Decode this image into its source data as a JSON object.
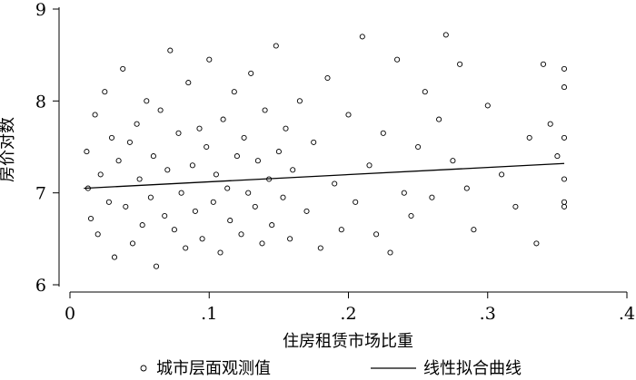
{
  "chart_data": {
    "type": "scatter",
    "xlabel": "住房租赁市场比重",
    "ylabel": "房价对数",
    "xlim": [
      0,
      0.4
    ],
    "ylim": [
      6,
      9
    ],
    "x_ticks": [
      0,
      0.1,
      0.2,
      0.3,
      0.4
    ],
    "x_tick_labels": [
      "0",
      ".1",
      ".2",
      ".3",
      ".4"
    ],
    "y_ticks": [
      6,
      7,
      8,
      9
    ],
    "y_tick_labels": [
      "6",
      "7",
      "8",
      "9"
    ],
    "grid": false,
    "legend_position": "bottom",
    "series": [
      {
        "name": "城市层面观测值",
        "kind": "scatter",
        "marker": "hollow-circle",
        "points": [
          [
            0.012,
            7.45
          ],
          [
            0.013,
            7.05
          ],
          [
            0.015,
            6.72
          ],
          [
            0.018,
            7.85
          ],
          [
            0.02,
            6.55
          ],
          [
            0.022,
            7.2
          ],
          [
            0.025,
            8.1
          ],
          [
            0.028,
            6.9
          ],
          [
            0.03,
            7.6
          ],
          [
            0.032,
            6.3
          ],
          [
            0.035,
            7.35
          ],
          [
            0.038,
            8.35
          ],
          [
            0.04,
            6.85
          ],
          [
            0.043,
            7.55
          ],
          [
            0.045,
            6.45
          ],
          [
            0.048,
            7.75
          ],
          [
            0.05,
            7.15
          ],
          [
            0.052,
            6.65
          ],
          [
            0.055,
            8.0
          ],
          [
            0.058,
            6.95
          ],
          [
            0.06,
            7.4
          ],
          [
            0.062,
            6.2
          ],
          [
            0.065,
            7.9
          ],
          [
            0.068,
            6.75
          ],
          [
            0.07,
            7.25
          ],
          [
            0.072,
            8.55
          ],
          [
            0.075,
            6.6
          ],
          [
            0.078,
            7.65
          ],
          [
            0.08,
            7.0
          ],
          [
            0.083,
            6.4
          ],
          [
            0.085,
            8.2
          ],
          [
            0.088,
            7.3
          ],
          [
            0.09,
            6.8
          ],
          [
            0.093,
            7.7
          ],
          [
            0.095,
            6.5
          ],
          [
            0.098,
            7.5
          ],
          [
            0.1,
            8.45
          ],
          [
            0.103,
            6.9
          ],
          [
            0.105,
            7.2
          ],
          [
            0.108,
            6.35
          ],
          [
            0.11,
            7.8
          ],
          [
            0.113,
            7.05
          ],
          [
            0.115,
            6.7
          ],
          [
            0.118,
            8.1
          ],
          [
            0.12,
            7.4
          ],
          [
            0.123,
            6.55
          ],
          [
            0.125,
            7.6
          ],
          [
            0.128,
            7.0
          ],
          [
            0.13,
            8.3
          ],
          [
            0.133,
            6.85
          ],
          [
            0.135,
            7.35
          ],
          [
            0.138,
            6.45
          ],
          [
            0.14,
            7.9
          ],
          [
            0.143,
            7.15
          ],
          [
            0.145,
            6.65
          ],
          [
            0.148,
            8.6
          ],
          [
            0.15,
            7.45
          ],
          [
            0.153,
            6.95
          ],
          [
            0.155,
            7.7
          ],
          [
            0.158,
            6.5
          ],
          [
            0.16,
            7.25
          ],
          [
            0.165,
            8.0
          ],
          [
            0.17,
            6.8
          ],
          [
            0.175,
            7.55
          ],
          [
            0.18,
            6.4
          ],
          [
            0.185,
            8.25
          ],
          [
            0.19,
            7.1
          ],
          [
            0.195,
            6.6
          ],
          [
            0.2,
            7.85
          ],
          [
            0.205,
            6.9
          ],
          [
            0.21,
            8.7
          ],
          [
            0.215,
            7.3
          ],
          [
            0.22,
            6.55
          ],
          [
            0.225,
            7.65
          ],
          [
            0.23,
            6.35
          ],
          [
            0.235,
            8.45
          ],
          [
            0.24,
            7.0
          ],
          [
            0.245,
            6.75
          ],
          [
            0.25,
            7.5
          ],
          [
            0.255,
            8.1
          ],
          [
            0.26,
            6.95
          ],
          [
            0.265,
            7.8
          ],
          [
            0.27,
            8.72
          ],
          [
            0.275,
            7.35
          ],
          [
            0.28,
            8.4
          ],
          [
            0.285,
            7.05
          ],
          [
            0.29,
            6.6
          ],
          [
            0.3,
            7.95
          ],
          [
            0.31,
            7.2
          ],
          [
            0.32,
            6.85
          ],
          [
            0.33,
            7.6
          ],
          [
            0.335,
            6.45
          ],
          [
            0.34,
            8.4
          ],
          [
            0.345,
            7.75
          ],
          [
            0.35,
            7.4
          ],
          [
            0.355,
            7.15
          ],
          [
            0.355,
            6.9
          ],
          [
            0.355,
            7.6
          ],
          [
            0.355,
            8.15
          ],
          [
            0.355,
            8.35
          ],
          [
            0.355,
            6.85
          ]
        ]
      },
      {
        "name": "线性拟合曲线",
        "kind": "line",
        "points": [
          [
            0.01,
            7.05
          ],
          [
            0.355,
            7.32
          ]
        ]
      }
    ]
  },
  "legend": {
    "items": [
      {
        "label": "城市层面观测值",
        "symbol": "hollow-circle"
      },
      {
        "label": "线性拟合曲线",
        "symbol": "line"
      }
    ]
  }
}
